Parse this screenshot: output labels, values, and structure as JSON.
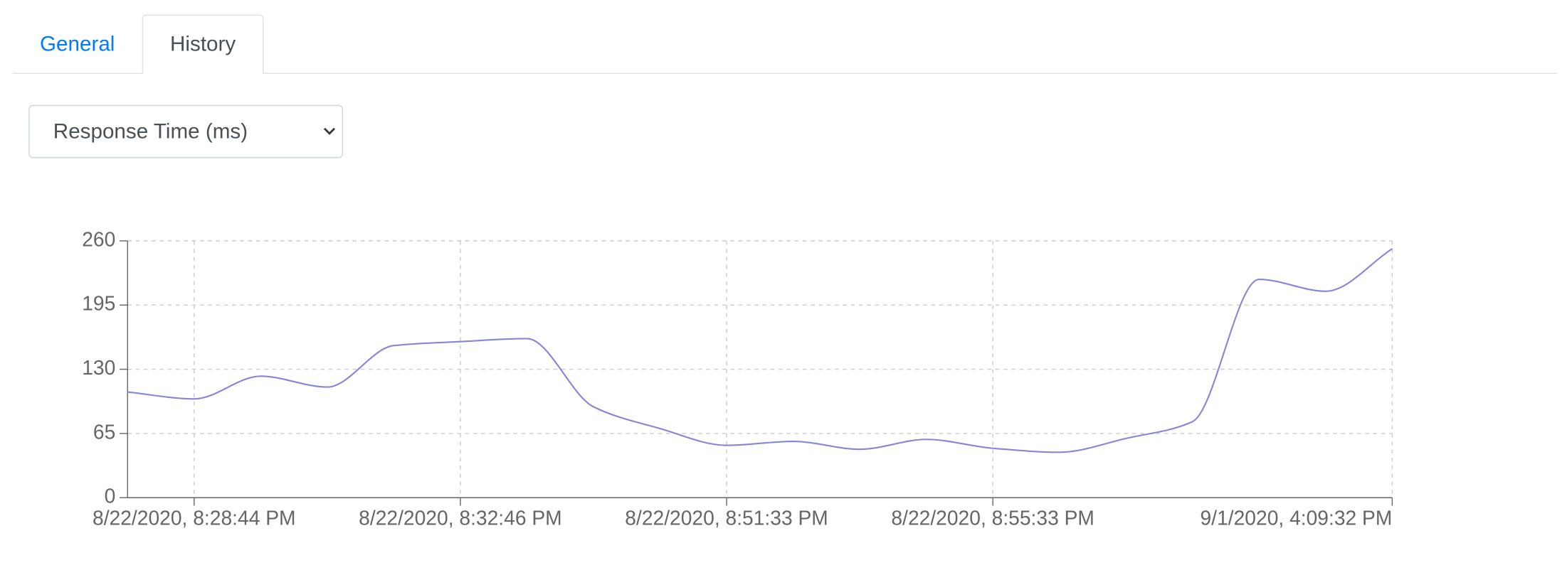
{
  "tabs": [
    {
      "label": "General"
    },
    {
      "label": "History"
    }
  ],
  "select": {
    "label": "Response Time (ms)"
  },
  "chart_data": {
    "type": "line",
    "categories": [
      null,
      "8/22/2020, 8:28:44 PM",
      null,
      null,
      null,
      "8/22/2020, 8:32:46 PM",
      null,
      null,
      null,
      "8/22/2020, 8:51:33 PM",
      null,
      null,
      null,
      "8/22/2020, 8:55:33 PM",
      null,
      null,
      null,
      null,
      null,
      "9/1/2020, 4:09:32 PM"
    ],
    "values": [
      107,
      100,
      123,
      112,
      154,
      158,
      161,
      92,
      70,
      53,
      57,
      49,
      59,
      50,
      46,
      60,
      77,
      221,
      209,
      252
    ],
    "color": "#8884d8",
    "ylim": [
      0,
      260
    ],
    "yticks": [
      0,
      65,
      130,
      195,
      260
    ],
    "grid": true
  }
}
